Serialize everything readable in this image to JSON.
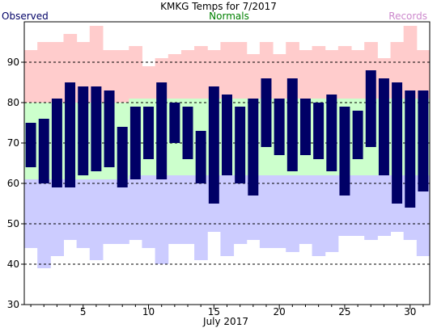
{
  "chart_data": {
    "type": "bar",
    "title": "KMKG Temps for 7/2017",
    "legend": {
      "observed": "Observed",
      "normals": "Normals",
      "records": "Records",
      "placement": "top"
    },
    "xlabel": "July 2017",
    "xlim": [
      1,
      31
    ],
    "x_tick_labels": [
      "5",
      "10",
      "15",
      "20",
      "25",
      "30"
    ],
    "ylim": [
      30,
      100
    ],
    "y_tick_labels": [
      "30",
      "40",
      "50",
      "60",
      "70",
      "80",
      "90"
    ],
    "grid": "horizontal dashed",
    "colors": {
      "observed": "#000066",
      "normal_band": "#ccffcc",
      "record_high_band": "#ffcccc",
      "record_low_band": "#ccccff",
      "observed_label": "#000066",
      "normals_label": "#008000",
      "records_label": "#cc88cc"
    },
    "days": [
      1,
      2,
      3,
      4,
      5,
      6,
      7,
      8,
      9,
      10,
      11,
      12,
      13,
      14,
      15,
      16,
      17,
      18,
      19,
      20,
      21,
      22,
      23,
      24,
      25,
      26,
      27,
      28,
      29,
      30,
      31
    ],
    "observed_high": [
      75,
      76,
      81,
      85,
      84,
      84,
      83,
      74,
      79,
      79,
      85,
      80,
      79,
      73,
      84,
      82,
      79,
      81,
      86,
      81,
      86,
      81,
      80,
      82,
      79,
      78,
      88,
      86,
      85,
      83,
      83
    ],
    "observed_low": [
      64,
      60,
      59,
      59,
      62,
      63,
      64,
      59,
      61,
      66,
      61,
      70,
      66,
      60,
      55,
      62,
      60,
      57,
      69,
      67,
      63,
      67,
      66,
      63,
      57,
      66,
      69,
      62,
      55,
      54,
      58
    ],
    "normal_high": [
      80,
      80,
      80,
      80,
      80,
      80,
      80,
      80,
      81,
      81,
      81,
      81,
      81,
      81,
      81,
      81,
      81,
      81,
      81,
      81,
      81,
      81,
      81,
      81,
      81,
      81,
      81,
      81,
      81,
      81,
      81
    ],
    "normal_low": [
      61,
      61,
      61,
      61,
      61,
      61,
      61,
      61,
      62,
      62,
      62,
      62,
      62,
      62,
      62,
      62,
      62,
      62,
      62,
      62,
      62,
      62,
      62,
      62,
      62,
      62,
      62,
      62,
      62,
      62,
      62
    ],
    "record_high": [
      93,
      95,
      95,
      97,
      95,
      99,
      93,
      93,
      94,
      89,
      91,
      92,
      93,
      94,
      93,
      95,
      95,
      92,
      95,
      92,
      95,
      93,
      94,
      93,
      94,
      93,
      95,
      91,
      95,
      99,
      93
    ],
    "record_low": [
      44,
      39,
      42,
      46,
      44,
      41,
      45,
      45,
      46,
      44,
      40,
      45,
      45,
      41,
      48,
      42,
      45,
      46,
      44,
      44,
      43,
      45,
      42,
      43,
      47,
      47,
      46,
      47,
      48,
      46,
      42
    ]
  }
}
